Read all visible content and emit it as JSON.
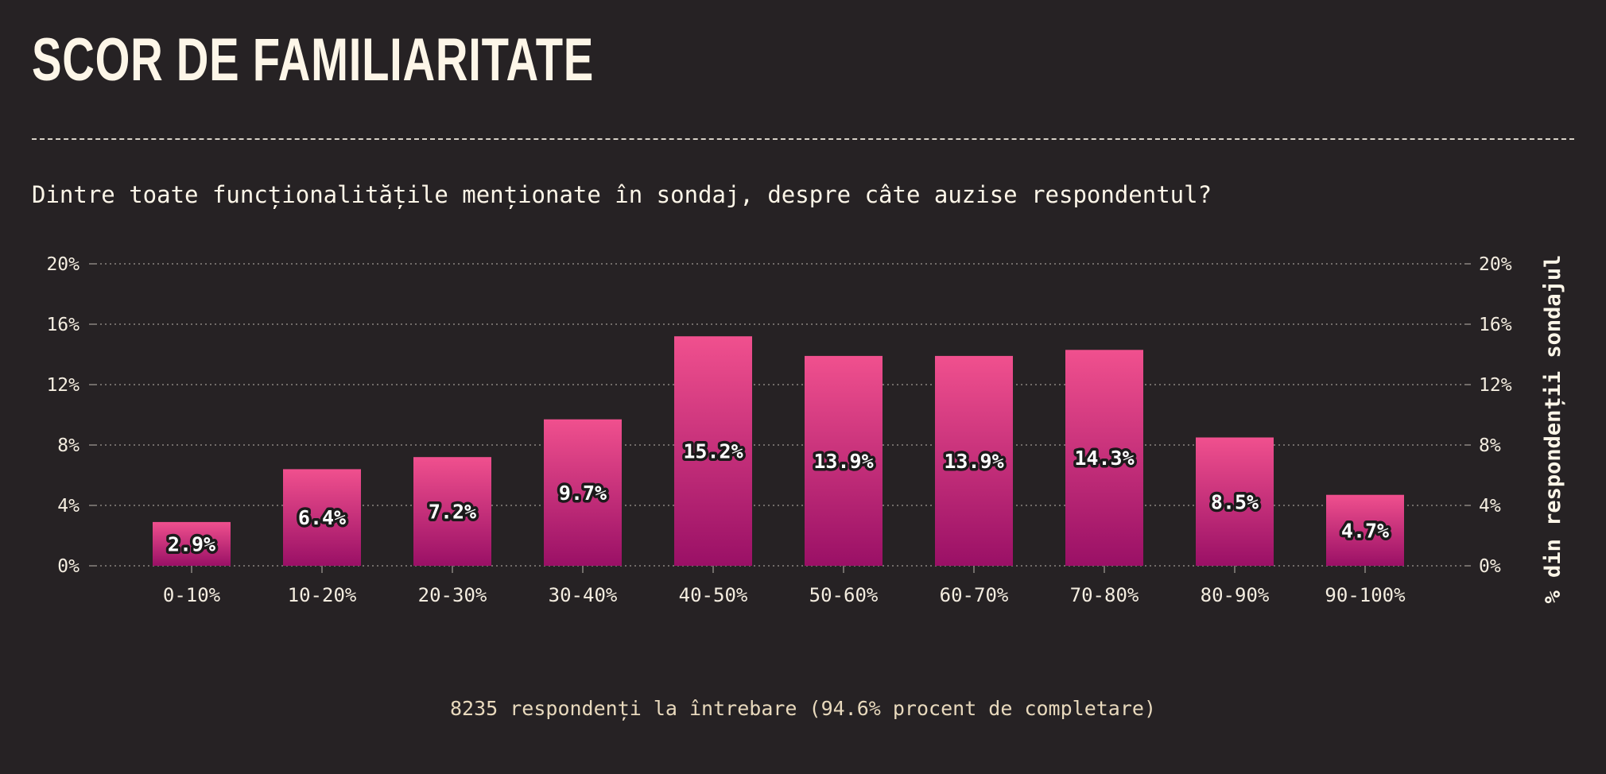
{
  "title": "SCOR DE FAMILIARITATE",
  "subtitle": "Dintre toate funcționalitățile menționate în sondaj, despre câte auzise respondentul?",
  "footer": "8235 respondenți la întrebare (94.6% procent de completare)",
  "colors": {
    "background": "#262224",
    "bar_top": "#f0508e",
    "bar_bottom": "#9a1066",
    "text": "#fdf6e8",
    "grid": "#8a8580"
  },
  "chart_data": {
    "type": "bar",
    "categories": [
      "0-10%",
      "10-20%",
      "20-30%",
      "30-40%",
      "40-50%",
      "50-60%",
      "60-70%",
      "70-80%",
      "80-90%",
      "90-100%"
    ],
    "values": [
      2.9,
      6.4,
      7.2,
      9.7,
      15.2,
      13.9,
      13.9,
      14.3,
      8.5,
      4.7
    ],
    "value_labels": [
      "2.9%",
      "6.4%",
      "7.2%",
      "9.7%",
      "15.2%",
      "13.9%",
      "13.9%",
      "14.3%",
      "8.5%",
      "4.7%"
    ],
    "title": "SCOR DE FAMILIARITATE",
    "subtitle": "Dintre toate funcționalitățile menționate în sondaj, despre câte auzise respondentul?",
    "xlabel": "",
    "ylabel": "% din respondenții sondajul",
    "ylim": [
      0,
      20
    ],
    "yticks": [
      0,
      4,
      8,
      12,
      16,
      20
    ],
    "ytick_labels": [
      "0%",
      "4%",
      "8%",
      "12%",
      "16%",
      "20%"
    ],
    "y_axis_sides": "both",
    "grid": true,
    "grid_style": "dotted"
  }
}
